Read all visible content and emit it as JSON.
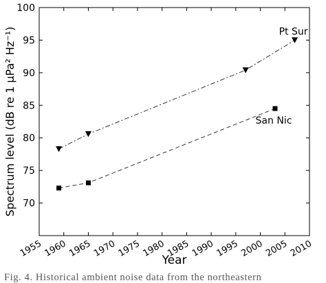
{
  "chart_data": {
    "type": "line",
    "xlabel": "Year",
    "ylabel": "Spectrum level (dB re 1 μPa² Hz⁻¹)",
    "xlim": [
      1955,
      2010
    ],
    "ylim": [
      65,
      100
    ],
    "x_ticks": [
      1955,
      1960,
      1965,
      1970,
      1975,
      1980,
      1985,
      1990,
      1995,
      2000,
      2005,
      2010
    ],
    "y_ticks": [
      70,
      75,
      80,
      85,
      90,
      95,
      100
    ],
    "grid": false,
    "series": [
      {
        "name": "Pt Sur",
        "marker": "triangle-down",
        "line_style": "dash-dot",
        "x": [
          1959,
          1965,
          1997,
          2007
        ],
        "y": [
          78.3,
          80.6,
          90.4,
          95.0
        ]
      },
      {
        "name": "San Nic",
        "marker": "square",
        "line_style": "dashed",
        "x": [
          1959,
          1965,
          2003
        ],
        "y": [
          72.3,
          73.1,
          84.5
        ]
      }
    ],
    "colors": {
      "axes": "#000000",
      "lines": "#333333",
      "markers": "#000000"
    }
  },
  "caption": "Fig. 4. Historical ambient noise data from the northeastern"
}
